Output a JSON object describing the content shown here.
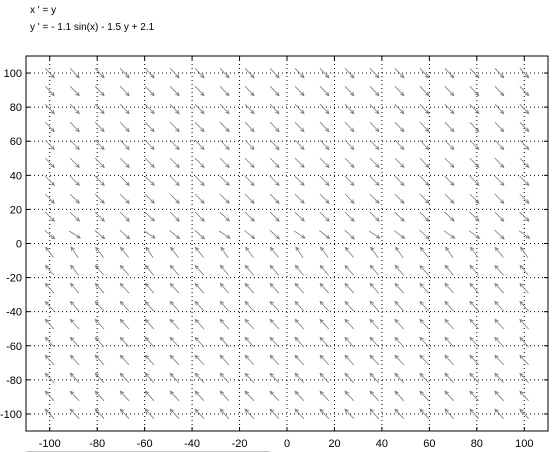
{
  "chart_data": {
    "type": "quiver",
    "title_lines": [
      "x ' = y",
      "y ' = - 1.1 sin(x) - 1.5 y + 2.1"
    ],
    "equations": {
      "dx": "y",
      "dy": "-1.1*sin(x) - 1.5*y + 2.1",
      "a": 1.1,
      "b": 1.5,
      "c": 2.1
    },
    "xlim": [
      -110,
      110
    ],
    "ylim": [
      -110,
      110
    ],
    "xticks": [
      -100,
      -80,
      -60,
      -40,
      -20,
      0,
      20,
      40,
      60,
      80,
      100
    ],
    "yticks": [
      100,
      80,
      60,
      40,
      20,
      0,
      -20,
      -40,
      -60,
      -80,
      -100
    ],
    "grid": "dotted",
    "field_grid": {
      "x_start": -100,
      "x_end": 100,
      "y_start": -100,
      "y_end": 100,
      "count": 20
    },
    "arrow_color": "#7a7a7a"
  }
}
